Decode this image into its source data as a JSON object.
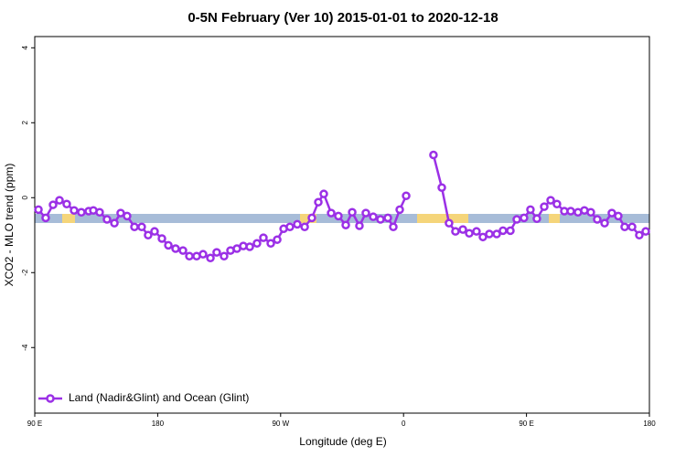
{
  "chart_data": {
    "type": "line",
    "title": "0-5N February (Ver 10)   2015-01-01 to 2020-12-18",
    "x_label": "Longitude (deg E)",
    "y_label": "XCO2 - MLO trend (ppm)",
    "xlim": [
      90,
      540
    ],
    "ylim": [
      -5.75,
      4.3
    ],
    "xticks": [
      {
        "value": 90,
        "label": "90 E"
      },
      180,
      {
        "value": 270,
        "label": "90 W"
      },
      {
        "value": 360,
        "label": "0"
      },
      {
        "value": 450,
        "label": "90 E"
      },
      {
        "value": 540,
        "label": "180"
      }
    ],
    "yticks": [
      4,
      2,
      0,
      -2,
      -4
    ],
    "legend": "bottom-left",
    "x": [
      92.7,
      98.0,
      103.4,
      108.1,
      113.4,
      118.8,
      124.1,
      129.5,
      132.9,
      137.5,
      142.9,
      148.3,
      152.9,
      157.6,
      163.0,
      168.3,
      173.0,
      177.7,
      183.1,
      187.8,
      193.1,
      198.5,
      203.2,
      208.5,
      213.2,
      218.6,
      223.2,
      228.6,
      233.3,
      238.0,
      242.7,
      247.4,
      252.7,
      257.4,
      262.8,
      267.5,
      272.2,
      276.8,
      282.2,
      287.6,
      292.9,
      297.6,
      301.6,
      307.0,
      312.3,
      317.7,
      322.4,
      327.7,
      332.4,
      337.8,
      343.1,
      348.5,
      352.5,
      357.2,
      361.9,
      372.0,
      381.9,
      388.0,
      393.3,
      398.0,
      403.4,
      408.1,
      413.4,
      418.1,
      422.8,
      428.2,
      432.8,
      438.2,
      442.9,
      448.2,
      452.9,
      457.6,
      463.0,
      467.7,
      472.3,
      477.7,
      482.4,
      487.7,
      492.4,
      497.1,
      501.8,
      507.2,
      512.5,
      517.2,
      521.9,
      527.3,
      532.6,
      537.3
    ],
    "series": [
      {
        "name": "Land (Nadir&Glint) and Ocean (Glint)",
        "color": "#9b30e6",
        "values": [
          -0.32,
          -0.54,
          -0.19,
          -0.07,
          -0.17,
          -0.34,
          -0.39,
          -0.36,
          -0.34,
          -0.39,
          -0.58,
          -0.68,
          -0.41,
          -0.49,
          -0.78,
          -0.78,
          -1.0,
          -0.9,
          -1.09,
          -1.27,
          -1.36,
          -1.41,
          -1.56,
          -1.56,
          -1.51,
          -1.61,
          -1.46,
          -1.56,
          -1.41,
          -1.36,
          -1.29,
          -1.31,
          -1.22,
          -1.07,
          -1.22,
          -1.12,
          -0.83,
          -0.78,
          -0.71,
          -0.78,
          -0.54,
          -0.12,
          0.1,
          -0.41,
          -0.49,
          -0.73,
          -0.39,
          -0.75,
          -0.41,
          -0.51,
          -0.58,
          -0.54,
          -0.78,
          -0.32,
          0.05,
          null,
          1.14,
          0.27,
          -0.68,
          -0.9,
          -0.85,
          -0.95,
          -0.9,
          -1.05,
          -0.97,
          -0.97,
          -0.88,
          -0.88,
          -0.58,
          -0.54,
          -0.32,
          -0.56,
          -0.24,
          -0.07,
          -0.17,
          -0.36,
          -0.36,
          -0.39,
          -0.34,
          -0.39,
          -0.58,
          -0.68,
          -0.41,
          -0.49,
          -0.78,
          -0.78,
          -1.0,
          -0.9
        ]
      }
    ]
  }
}
